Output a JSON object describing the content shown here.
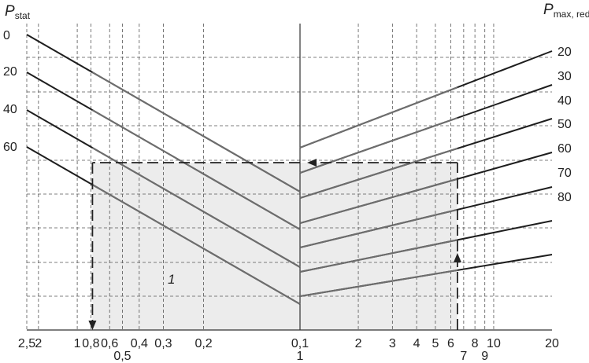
{
  "chart_data": {
    "type": "line",
    "subtype": "nomogram",
    "left_axis": {
      "label_main": "P",
      "label_sub": "stat",
      "ticks": [
        "0",
        "20",
        "40",
        "60"
      ]
    },
    "right_axis": {
      "label_main": "P",
      "label_sub": "max, red",
      "ticks": [
        "20",
        "30",
        "40",
        "50",
        "60",
        "70",
        "80"
      ]
    },
    "bottom_axis_left": {
      "scale": "reciprocal",
      "range": [
        2.5,
        0.1
      ],
      "ticks": [
        {
          "value": 2.5,
          "label": "2,5"
        },
        {
          "value": 2,
          "label": "2"
        },
        {
          "value": 1,
          "label": "1"
        },
        {
          "value": 0.8,
          "label": "0,8"
        },
        {
          "value": 0.6,
          "label": "0,6"
        },
        {
          "value": 0.5,
          "label": "0,5"
        },
        {
          "value": 0.4,
          "label": "0,4"
        },
        {
          "value": 0.3,
          "label": "0,3"
        },
        {
          "value": 0.2,
          "label": "0,2"
        },
        {
          "value": 0.1,
          "label": "0,1"
        }
      ]
    },
    "bottom_axis_right": {
      "scale": "log",
      "range": [
        1,
        20
      ],
      "ticks": [
        {
          "value": 1,
          "label": "1"
        },
        {
          "value": 2,
          "label": "2"
        },
        {
          "value": 3,
          "label": "3"
        },
        {
          "value": 4,
          "label": "4"
        },
        {
          "value": 5,
          "label": "5"
        },
        {
          "value": 6,
          "label": "6"
        },
        {
          "value": 7,
          "label": "7"
        },
        {
          "value": 8,
          "label": "8"
        },
        {
          "value": 9,
          "label": "9"
        },
        {
          "value": 10,
          "label": "10"
        },
        {
          "value": 20,
          "label": "20"
        }
      ]
    },
    "left_family": [
      {
        "p_stat": 0
      },
      {
        "p_stat": 20
      },
      {
        "p_stat": 40
      },
      {
        "p_stat": 60
      }
    ],
    "right_family": [
      {
        "p_max_red": 20
      },
      {
        "p_max_red": 30
      },
      {
        "p_max_red": 40
      },
      {
        "p_max_red": 50
      },
      {
        "p_max_red": 60
      },
      {
        "p_max_red": 70
      },
      {
        "p_max_red": 80
      }
    ],
    "example_path": {
      "start_right_x": 6.5,
      "end_left_x": 0.78
    },
    "shaded_region_label": "1",
    "grid": true
  },
  "colors": {
    "line_dark": "#1e1e1e",
    "line_gray": "#6e6e6e",
    "grid": "#555555",
    "shade": "#ececec"
  }
}
